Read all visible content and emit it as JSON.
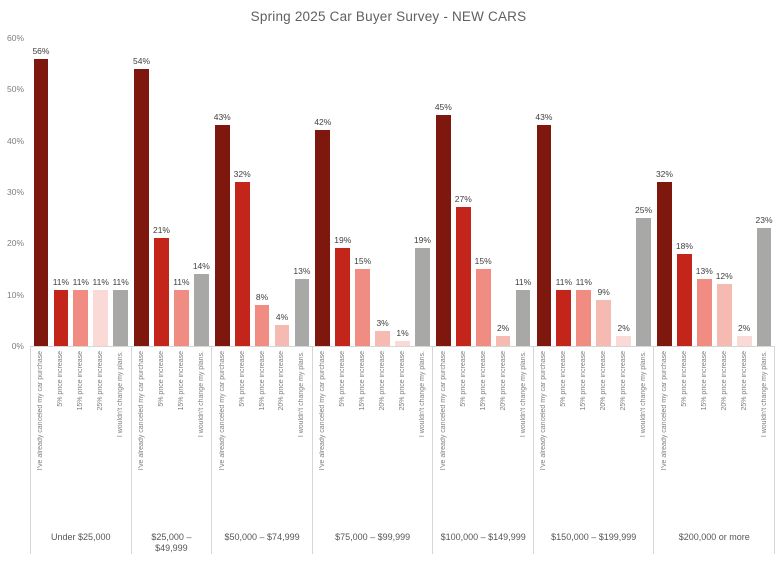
{
  "title": "Spring 2025 Car Buyer Survey - NEW CARS",
  "y_axis": {
    "ticks": [
      "0%",
      "10%",
      "20%",
      "30%",
      "40%",
      "50%",
      "60%"
    ],
    "max_value": 60
  },
  "palette": {
    "I've already canceled my car purchase": "#7E170E",
    "5% price increase": "#C4251A",
    "15% price increase": "#F08C82",
    "20% price increase": "#F5BAB2",
    "25% price increase": "#FADAD6",
    "I wouldn't change my plans.": "#A8A8A6"
  },
  "chart_data": {
    "type": "bar",
    "title": "Spring 2025 Car Buyer Survey - NEW CARS",
    "xlabel": "",
    "ylabel": "",
    "ylim": [
      0,
      60
    ],
    "y_tick_labels": [
      "0%",
      "10%",
      "20%",
      "30%",
      "40%",
      "50%",
      "60%"
    ],
    "grid": "off",
    "legend": "none",
    "value_labels": "percent above each bar",
    "groups": [
      {
        "category": "Under $25,000",
        "bars": [
          {
            "label": "I've already canceled my car purchase",
            "value": 56,
            "value_label": "56%"
          },
          {
            "label": "5% price increase",
            "value": 11,
            "value_label": "11%"
          },
          {
            "label": "15% price increase",
            "value": 11,
            "value_label": "11%"
          },
          {
            "label": "25% price increase",
            "value": 11,
            "value_label": "11%"
          },
          {
            "label": "I wouldn't change my plans.",
            "value": 11,
            "value_label": "11%"
          }
        ]
      },
      {
        "category": "$25,000 – $49,999",
        "bars": [
          {
            "label": "I've already canceled my car purchase",
            "value": 54,
            "value_label": "54%"
          },
          {
            "label": "5% price increase",
            "value": 21,
            "value_label": "21%"
          },
          {
            "label": "15% price increase",
            "value": 11,
            "value_label": "11%"
          },
          {
            "label": "I wouldn't change my plans.",
            "value": 14,
            "value_label": "14%"
          }
        ]
      },
      {
        "category": "$50,000 – $74,999",
        "bars": [
          {
            "label": "I've already canceled my car purchase",
            "value": 43,
            "value_label": "43%"
          },
          {
            "label": "5% price increase",
            "value": 32,
            "value_label": "32%"
          },
          {
            "label": "15% price increase",
            "value": 8,
            "value_label": "8%"
          },
          {
            "label": "20% price increase",
            "value": 4,
            "value_label": "4%"
          },
          {
            "label": "I wouldn't change my plans.",
            "value": 13,
            "value_label": "13%"
          }
        ]
      },
      {
        "category": "$75,000 – $99,999",
        "bars": [
          {
            "label": "I've already canceled my car purchase",
            "value": 42,
            "value_label": "42%"
          },
          {
            "label": "5% price increase",
            "value": 19,
            "value_label": "19%"
          },
          {
            "label": "15% price increase",
            "value": 15,
            "value_label": "15%"
          },
          {
            "label": "20% price increase",
            "value": 3,
            "value_label": "3%"
          },
          {
            "label": "25% price increase",
            "value": 1,
            "value_label": "1%"
          },
          {
            "label": "I wouldn't change my plans.",
            "value": 19,
            "value_label": "19%"
          }
        ]
      },
      {
        "category": "$100,000 – $149,999",
        "bars": [
          {
            "label": "I've already canceled my car purchase",
            "value": 45,
            "value_label": "45%"
          },
          {
            "label": "5% price increase",
            "value": 27,
            "value_label": "27%"
          },
          {
            "label": "15% price increase",
            "value": 15,
            "value_label": "15%"
          },
          {
            "label": "20% price increase",
            "value": 2,
            "value_label": "2%"
          },
          {
            "label": "I wouldn't change my plans.",
            "value": 11,
            "value_label": "11%"
          }
        ]
      },
      {
        "category": "$150,000 – $199,999",
        "bars": [
          {
            "label": "I've already canceled my car purchase",
            "value": 43,
            "value_label": "43%"
          },
          {
            "label": "5% price increase",
            "value": 11,
            "value_label": "11%"
          },
          {
            "label": "15% price increase",
            "value": 11,
            "value_label": "11%"
          },
          {
            "label": "20% price increase",
            "value": 9,
            "value_label": "9%"
          },
          {
            "label": "25% price increase",
            "value": 2,
            "value_label": "2%"
          },
          {
            "label": "I wouldn't change my plans.",
            "value": 25,
            "value_label": "25%"
          }
        ]
      },
      {
        "category": "$200,000 or more",
        "bars": [
          {
            "label": "I've already canceled my car purchase",
            "value": 32,
            "value_label": "32%"
          },
          {
            "label": "5% price increase",
            "value": 18,
            "value_label": "18%"
          },
          {
            "label": "15% price increase",
            "value": 13,
            "value_label": "13%"
          },
          {
            "label": "20% price increase",
            "value": 12,
            "value_label": "12%"
          },
          {
            "label": "25% price increase",
            "value": 2,
            "value_label": "2%"
          },
          {
            "label": "I wouldn't change my plans.",
            "value": 23,
            "value_label": "23%"
          }
        ]
      }
    ]
  }
}
